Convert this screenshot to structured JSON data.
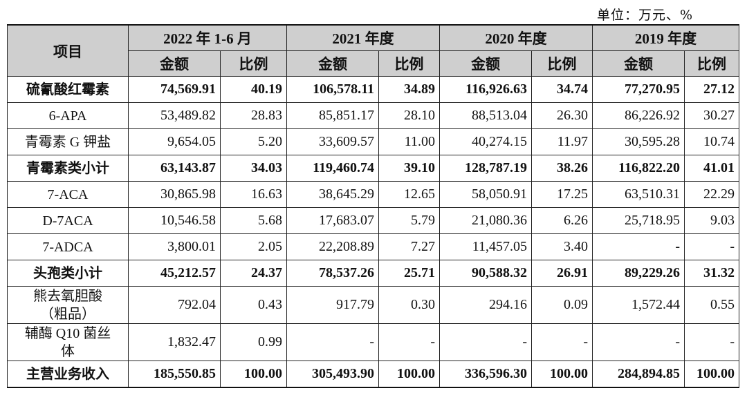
{
  "unit_label": "单位：万元、%",
  "header": {
    "item": "项目",
    "periods": [
      "2022 年 1-6 月",
      "2021 年度",
      "2020 年度",
      "2019 年度"
    ],
    "amount": "金额",
    "ratio": "比例"
  },
  "rows": [
    {
      "name": "硫氰酸红霉素",
      "bold": true,
      "vals": [
        "74,569.91",
        "40.19",
        "106,578.11",
        "34.89",
        "116,926.63",
        "34.74",
        "77,270.95",
        "27.12"
      ]
    },
    {
      "name": "6-APA",
      "bold": false,
      "vals": [
        "53,489.82",
        "28.83",
        "85,851.17",
        "28.10",
        "88,513.04",
        "26.30",
        "86,226.92",
        "30.27"
      ]
    },
    {
      "name": "青霉素 G 钾盐",
      "bold": false,
      "vals": [
        "9,654.05",
        "5.20",
        "33,609.57",
        "11.00",
        "40,274.15",
        "11.97",
        "30,595.28",
        "10.74"
      ]
    },
    {
      "name": "青霉素类小计",
      "bold": true,
      "vals": [
        "63,143.87",
        "34.03",
        "119,460.74",
        "39.10",
        "128,787.19",
        "38.26",
        "116,822.20",
        "41.01"
      ]
    },
    {
      "name": "7-ACA",
      "bold": false,
      "vals": [
        "30,865.98",
        "16.63",
        "38,645.29",
        "12.65",
        "58,050.91",
        "17.25",
        "63,510.31",
        "22.29"
      ]
    },
    {
      "name": "D-7ACA",
      "bold": false,
      "vals": [
        "10,546.58",
        "5.68",
        "17,683.07",
        "5.79",
        "21,080.36",
        "6.26",
        "25,718.95",
        "9.03"
      ]
    },
    {
      "name": "7-ADCA",
      "bold": false,
      "vals": [
        "3,800.01",
        "2.05",
        "22,208.89",
        "7.27",
        "11,457.05",
        "3.40",
        "-",
        "-"
      ]
    },
    {
      "name": "头孢类小计",
      "bold": true,
      "vals": [
        "45,212.57",
        "24.37",
        "78,537.26",
        "25.71",
        "90,588.32",
        "26.91",
        "89,229.26",
        "31.32"
      ]
    },
    {
      "name": "熊去氧胆酸\n（粗品）",
      "bold": false,
      "tall": true,
      "vals": [
        "792.04",
        "0.43",
        "917.79",
        "0.30",
        "294.16",
        "0.09",
        "1,572.44",
        "0.55"
      ]
    },
    {
      "name": "辅酶 Q10 菌丝\n体",
      "bold": false,
      "tall": true,
      "vals": [
        "1,832.47",
        "0.99",
        "-",
        "-",
        "-",
        "-",
        "-",
        "-"
      ]
    },
    {
      "name": "主营业务收入",
      "bold": true,
      "vals": [
        "185,550.85",
        "100.00",
        "305,493.90",
        "100.00",
        "336,596.30",
        "100.00",
        "284,894.85",
        "100.00"
      ]
    }
  ]
}
